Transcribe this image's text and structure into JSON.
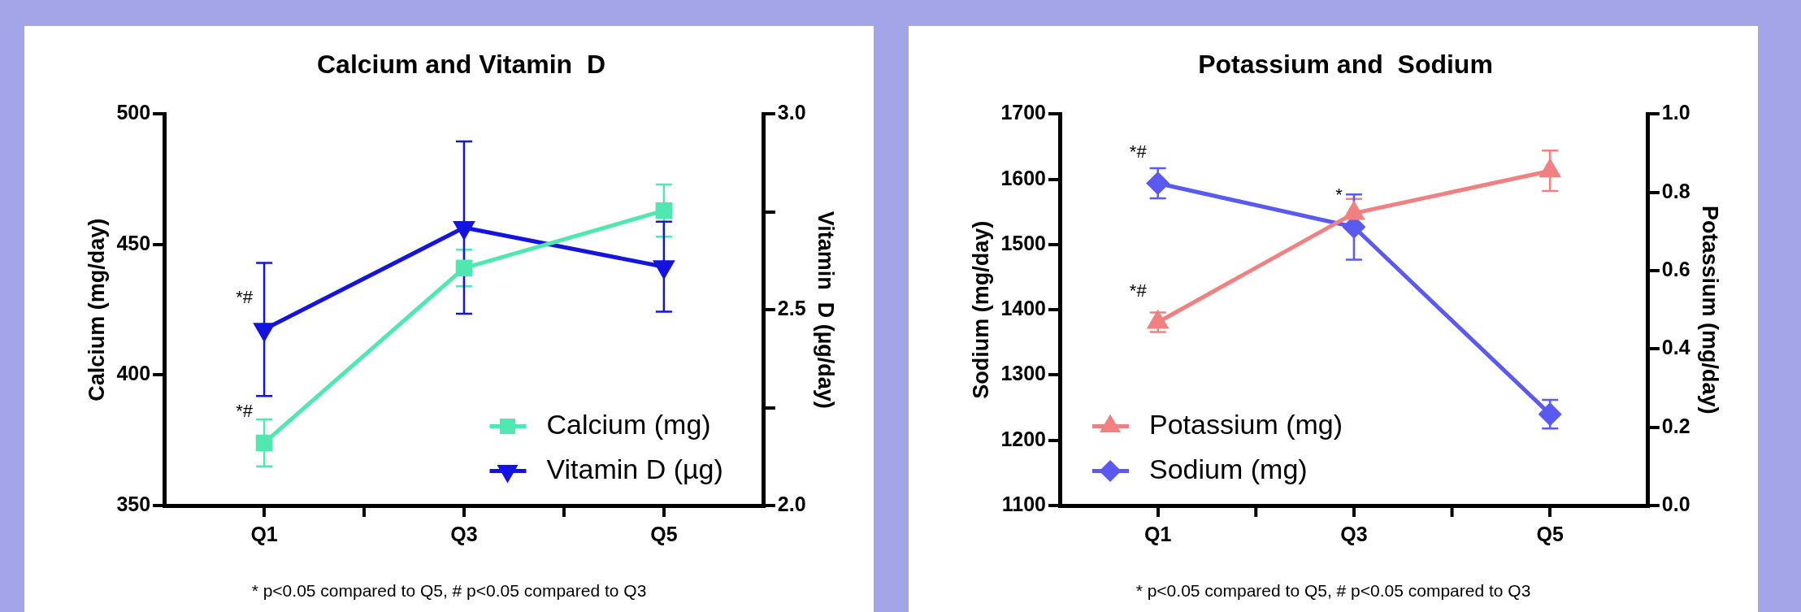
{
  "chart_data": [
    {
      "type": "line",
      "title": "Calcium and Vitamin  D",
      "ylabel": "Calcium (mg/day)",
      "y2label": "Vitamin  D (µg/day)",
      "categories": [
        "Q1",
        "Q3",
        "Q5"
      ],
      "series": [
        {
          "name": "Calcium (mg)",
          "color": "#4fe8b0",
          "values": [
            374,
            441,
            463
          ],
          "errors": [
            9,
            7,
            10
          ],
          "marker": "square"
        },
        {
          "name": "Vitamin D (µg)",
          "color": "#1414e0",
          "values": [
            2.45,
            2.71,
            2.61
          ],
          "errors": [
            0.17,
            0.22,
            0.115
          ],
          "marker": "triangle-down",
          "axis": "y2"
        }
      ],
      "ylim": [
        350,
        500
      ],
      "yticks": [
        350,
        400,
        450,
        500
      ],
      "y2lim": [
        2.0,
        3.0
      ],
      "y2ticks": [
        {
          "value": 2.0,
          "label": "2.0"
        },
        {
          "value": 2.25,
          "label": null
        },
        {
          "value": 2.5,
          "label": "2.5"
        },
        {
          "value": 2.75,
          "label": null
        },
        {
          "value": 3.0,
          "label": "3.0"
        }
      ],
      "grid": false,
      "legend": "bottom right",
      "line_style": "solid",
      "annotations": [
        {
          "text": "*#",
          "x": "Q1",
          "y": 417.5
        },
        {
          "text": "*#",
          "x": "Q1",
          "y": 374
        },
        "* p<0.05 compared to Q5,   # p<0.05 compared to Q3"
      ]
    },
    {
      "type": "line",
      "title": "Potassium and  Sodium",
      "ylabel": "Sodium (mg/day)",
      "y2label": "Potassium (mg/day)",
      "categories": [
        "Q1",
        "Q3",
        "Q5"
      ],
      "series": [
        {
          "name": "Potassium (mg)",
          "color": "#f28080",
          "values": [
            1381,
            1548,
            1613
          ],
          "errors": [
            15,
            22,
            31
          ],
          "marker": "triangle"
        },
        {
          "name": "Sodium (mg)",
          "color": "#5a5af0",
          "values": [
            1594,
            1527,
            1240
          ],
          "errors": [
            23,
            50,
            22
          ],
          "marker": "diamond"
        }
      ],
      "ylim": [
        1100,
        1700
      ],
      "yticks": [
        1100,
        1200,
        1300,
        1400,
        1500,
        1600,
        1700
      ],
      "y2lim": [
        0.0,
        1.0
      ],
      "y2ticks": [
        {
          "value": 0,
          "label": "0.0"
        },
        {
          "value": 0.2,
          "label": "0.2"
        },
        {
          "value": 0.4,
          "label": "0.4"
        },
        {
          "value": 0.6,
          "label": "0.6"
        },
        {
          "value": 0.8,
          "label": "0.8"
        },
        {
          "value": 1.0,
          "label": "1.0"
        }
      ],
      "grid": false,
      "legend": "bottom left",
      "line_style": "solid",
      "annotations": [
        {
          "text": "*#",
          "x": "Q1",
          "y": 1594
        },
        {
          "text": "*#",
          "x": "Q1",
          "y": 1381
        },
        {
          "text": "*",
          "x": "Q3",
          "y": 1527
        },
        "* p<0.05 compared to Q5,   # p<0.05 compared to Q3"
      ]
    }
  ]
}
